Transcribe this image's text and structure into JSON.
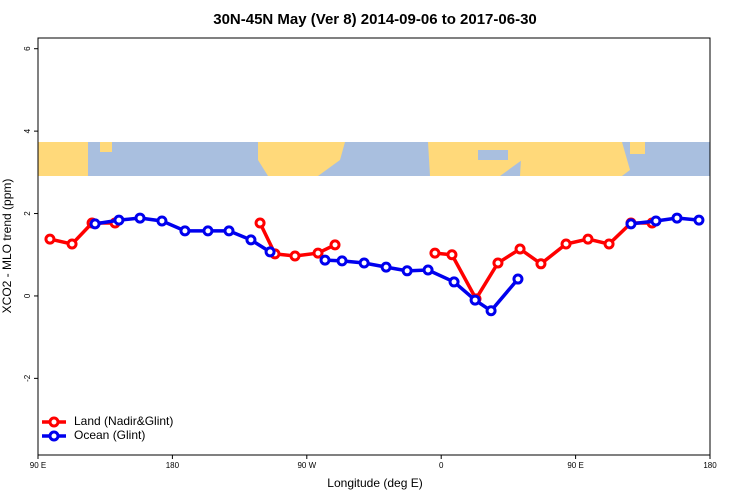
{
  "chart_data": {
    "type": "line",
    "title": "30N-45N May (Ver 8)   2014-09-06 to 2017-06-30",
    "x_label": "Longitude (deg E)",
    "y_label": "XCO2 - MLO trend (ppm)",
    "xlim": [
      90,
      540
    ],
    "ylim": [
      -3.86,
      6.26
    ],
    "xticks": [
      {
        "value": 90,
        "label": "90 E"
      },
      180,
      {
        "value": 270,
        "label": "90 W"
      },
      {
        "value": 360,
        "label": "0"
      },
      {
        "value": 450,
        "label": "90 E"
      },
      {
        "value": 540,
        "label": "180"
      }
    ],
    "yticks": [
      -2,
      0,
      2,
      4,
      6
    ],
    "legend": "bottom-left",
    "series": [
      {
        "name": "Land (Nadir&Glint)",
        "color": "#ff0000",
        "x": [
          98,
          112.8,
          126.2,
          141.6,
          null,
          238.7,
          248.7,
          262.1,
          277.5,
          288.9,
          null,
          355.8,
          367.2,
          383.3,
          398.0,
          412.8,
          426.8,
          443.6,
          458.3,
          472.4,
          487.1,
          501.2
        ],
        "values": [
          1.38,
          1.26,
          1.77,
          1.77,
          null,
          1.77,
          1.02,
          0.97,
          1.04,
          1.24,
          null,
          1.04,
          1.0,
          -0.07,
          0.8,
          1.14,
          0.78,
          1.26,
          1.38,
          1.26,
          1.77,
          1.77
        ]
      },
      {
        "name": "Ocean (Glint)",
        "color": "#0000ee",
        "x": [
          128.2,
          144.2,
          158.3,
          173.0,
          188.4,
          203.8,
          217.9,
          232.6,
          245.4,
          null,
          282.2,
          293.6,
          308.4,
          323.1,
          337.2,
          351.2,
          368.6,
          382.7,
          393.4,
          411.4,
          null,
          487.1,
          503.8,
          517.9,
          532.6
        ],
        "values": [
          1.75,
          1.84,
          1.89,
          1.82,
          1.58,
          1.58,
          1.58,
          1.36,
          1.07,
          null,
          0.87,
          0.85,
          0.8,
          0.7,
          0.61,
          0.63,
          0.34,
          -0.1,
          -0.36,
          0.41,
          null,
          1.75,
          1.82,
          1.89,
          1.84
        ]
      }
    ]
  }
}
